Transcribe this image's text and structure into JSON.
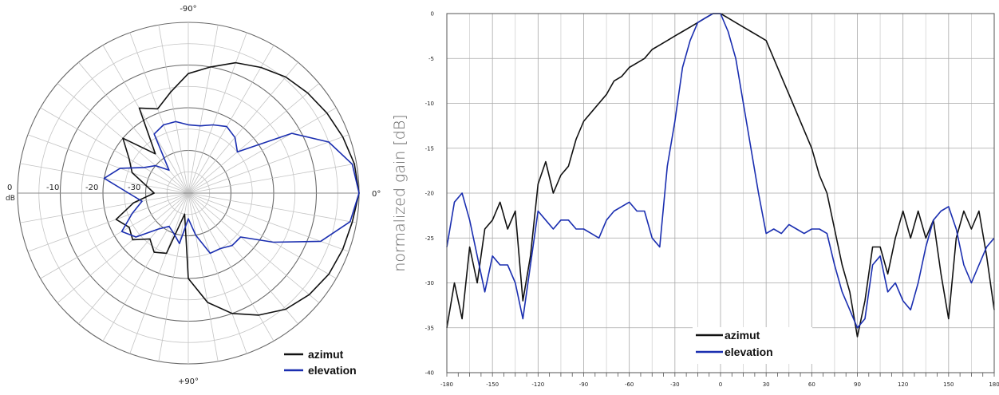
{
  "colors": {
    "azimut": "#111111",
    "elevation": "#1a2eb0",
    "grid": "#b8b8b8"
  },
  "chart_data": [
    {
      "type": "polar",
      "angle_labels": {
        "top": "-90°",
        "bottom": "+90°",
        "right": "0°"
      },
      "radial_labels": [
        "0",
        "-10",
        "-20",
        "-30"
      ],
      "radial_unit": "dB",
      "rlim": [
        -40,
        0
      ],
      "grid": true,
      "legend": {
        "position": "bottom-right",
        "entries": [
          "azimut",
          "elevation"
        ]
      },
      "series": [
        {
          "name": "azimut",
          "theta": [
            -180,
            -170,
            -160,
            -150,
            -140,
            -130,
            -120,
            -110,
            -100,
            -90,
            -80,
            -70,
            -60,
            -50,
            -40,
            -30,
            -20,
            -10,
            0,
            10,
            20,
            30,
            40,
            50,
            60,
            70,
            80,
            90,
            100,
            110,
            120,
            130,
            140,
            150,
            160,
            170
          ],
          "r": [
            -32,
            -30,
            -26,
            -24,
            -20,
            -28,
            -17,
            -19,
            -16,
            -12,
            -10,
            -7.5,
            -6,
            -4.5,
            -3.5,
            -2.5,
            -1.5,
            -0.5,
            0,
            -1,
            -1.5,
            -2,
            -3,
            -4.5,
            -7,
            -10,
            -14,
            -20,
            -35,
            -25,
            -24,
            -26,
            -23,
            -24,
            -22,
            -27
          ]
        },
        {
          "name": "elevation",
          "theta": [
            -180,
            -170,
            -160,
            -150,
            -140,
            -130,
            -120,
            -110,
            -100,
            -90,
            -80,
            -70,
            -60,
            -50,
            -40,
            -30,
            -20,
            -10,
            0,
            10,
            20,
            30,
            40,
            50,
            60,
            70,
            80,
            90,
            100,
            110,
            120,
            130,
            140,
            150,
            160,
            170
          ],
          "r": [
            -26,
            -20,
            -23,
            -28,
            -30,
            -33,
            -24,
            -23,
            -23,
            -24,
            -24,
            -23,
            -22,
            -23,
            -25,
            -12,
            -5,
            -1,
            0,
            -1.5,
            -7,
            -17,
            -24,
            -24,
            -25,
            -25,
            -30,
            -34,
            -28,
            -30,
            -31,
            -29,
            -24,
            -22,
            -26,
            -29
          ]
        }
      ]
    },
    {
      "type": "line",
      "ylabel": "normalized gain [dB]",
      "xlim": [
        -180,
        180
      ],
      "ylim": [
        -40,
        0
      ],
      "xticks": [
        -180,
        -150,
        -120,
        -90,
        -60,
        -30,
        0,
        30,
        60,
        90,
        120,
        150,
        180
      ],
      "yticks": [
        0,
        -5,
        -10,
        -15,
        -20,
        -25,
        -30,
        -35,
        -40
      ],
      "grid": true,
      "legend": {
        "position": "bottom-center",
        "entries": [
          "azimut",
          "elevation"
        ]
      },
      "series": [
        {
          "name": "azimut",
          "x": [
            -180,
            -175,
            -170,
            -165,
            -160,
            -155,
            -150,
            -145,
            -140,
            -135,
            -130,
            -125,
            -120,
            -115,
            -110,
            -105,
            -100,
            -95,
            -90,
            -85,
            -80,
            -75,
            -70,
            -65,
            -60,
            -55,
            -50,
            -45,
            -40,
            -35,
            -30,
            -25,
            -20,
            -15,
            -10,
            -5,
            0,
            5,
            10,
            15,
            20,
            25,
            30,
            35,
            40,
            45,
            50,
            55,
            60,
            65,
            70,
            75,
            80,
            85,
            90,
            95,
            100,
            105,
            110,
            115,
            120,
            125,
            130,
            135,
            140,
            145,
            150,
            155,
            160,
            165,
            170,
            175,
            180
          ],
          "y": [
            -35,
            -30,
            -34,
            -26,
            -30,
            -24,
            -23,
            -21,
            -24,
            -22,
            -32,
            -27,
            -19,
            -16.5,
            -20,
            -18,
            -17,
            -14,
            -12,
            -11,
            -10,
            -9,
            -7.5,
            -7,
            -6,
            -5.5,
            -5,
            -4,
            -3.5,
            -3,
            -2.5,
            -2,
            -1.5,
            -1,
            -0.5,
            0,
            0,
            -0.5,
            -1,
            -1.5,
            -2,
            -2.5,
            -3,
            -5,
            -7,
            -9,
            -11,
            -13,
            -15,
            -18,
            -20,
            -24,
            -28,
            -31,
            -36,
            -32,
            -26,
            -26,
            -29,
            -25,
            -22,
            -25,
            -22,
            -25,
            -23,
            -29,
            -34,
            -25,
            -22,
            -24,
            -22,
            -27,
            -33
          ]
        },
        {
          "name": "elevation",
          "x": [
            -180,
            -175,
            -170,
            -165,
            -160,
            -155,
            -150,
            -145,
            -140,
            -135,
            -130,
            -125,
            -120,
            -115,
            -110,
            -105,
            -100,
            -95,
            -90,
            -85,
            -80,
            -75,
            -70,
            -65,
            -60,
            -55,
            -50,
            -45,
            -40,
            -35,
            -30,
            -25,
            -20,
            -15,
            -10,
            -5,
            0,
            5,
            10,
            15,
            20,
            25,
            30,
            35,
            40,
            45,
            50,
            55,
            60,
            65,
            70,
            75,
            80,
            85,
            90,
            95,
            100,
            105,
            110,
            115,
            120,
            125,
            130,
            135,
            140,
            145,
            150,
            155,
            160,
            165,
            170,
            175,
            180
          ],
          "y": [
            -26,
            -21,
            -20,
            -23,
            -27,
            -31,
            -27,
            -28,
            -28,
            -30,
            -34,
            -28,
            -22,
            -23,
            -24,
            -23,
            -23,
            -24,
            -24,
            -24.5,
            -25,
            -23,
            -22,
            -21.5,
            -21,
            -22,
            -22,
            -25,
            -26,
            -17,
            -12,
            -6,
            -3,
            -1,
            -0.5,
            0,
            0,
            -2,
            -5,
            -10,
            -15,
            -20,
            -24.5,
            -24,
            -24.5,
            -23.5,
            -24,
            -24.5,
            -24,
            -24,
            -24.5,
            -28,
            -31,
            -33,
            -35,
            -34,
            -28,
            -27,
            -31,
            -30,
            -32,
            -33,
            -30,
            -26,
            -23,
            -22,
            -21.5,
            -24,
            -28,
            -30,
            -28,
            -26,
            -25
          ]
        }
      ]
    }
  ]
}
